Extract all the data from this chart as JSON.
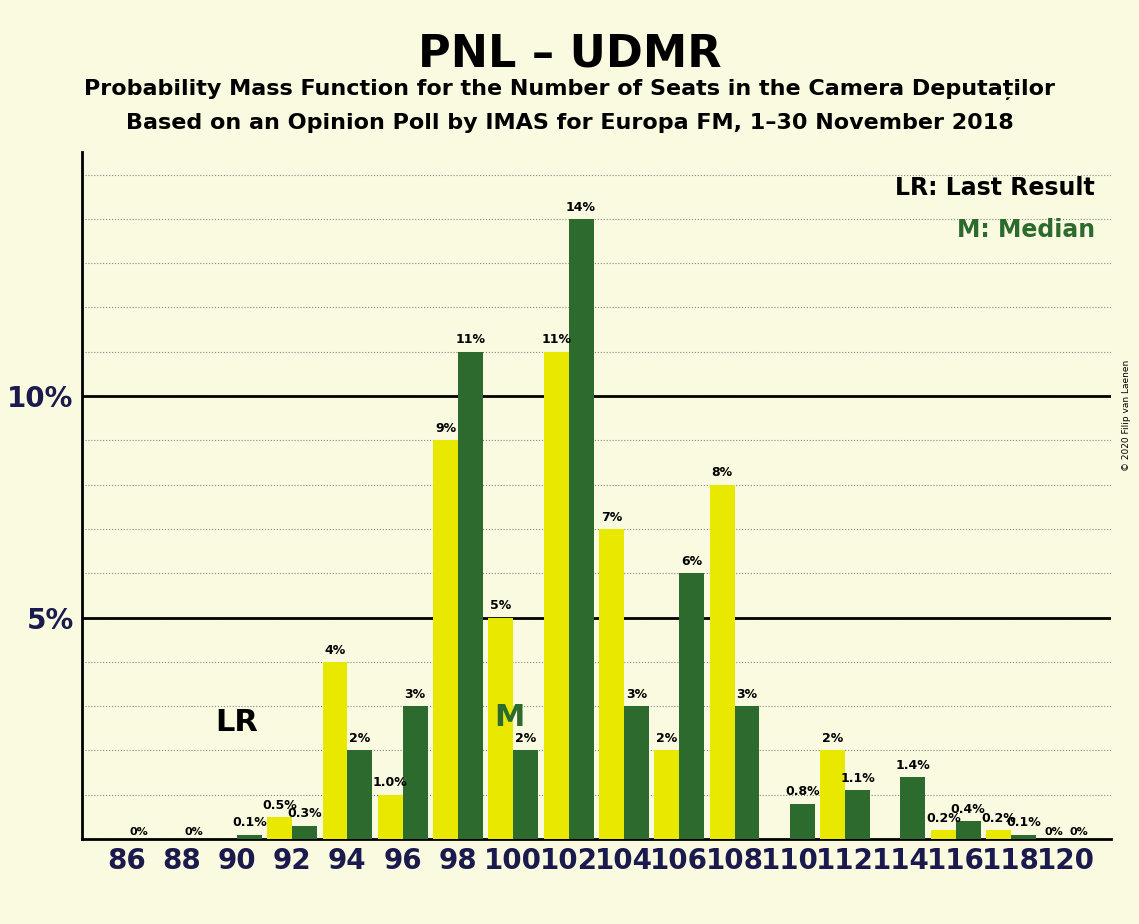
{
  "title": "PNL – UDMR",
  "subtitle1": "Probability Mass Function for the Number of Seats in the Camera Deputaților",
  "subtitle2": "Based on an Opinion Poll by IMAS for Europa FM, 1–30 November 2018",
  "copyright": "© 2020 Filip van Laenen",
  "legend_lr": "LR: Last Result",
  "legend_m": "M: Median",
  "background_color": "#FAFAE0",
  "seats": [
    86,
    88,
    90,
    92,
    94,
    96,
    98,
    100,
    102,
    104,
    106,
    108,
    110,
    112,
    114,
    116,
    118,
    120
  ],
  "green_values": [
    0.0,
    0.0,
    0.1,
    0.3,
    2.0,
    3.0,
    11.0,
    2.0,
    14.0,
    3.0,
    6.0,
    3.0,
    0.8,
    1.1,
    1.4,
    0.4,
    0.1,
    0.0
  ],
  "yellow_values": [
    0.0,
    0.0,
    0.0,
    0.5,
    4.0,
    1.0,
    9.0,
    5.0,
    11.0,
    7.0,
    2.0,
    8.0,
    0.0,
    2.0,
    0.0,
    0.2,
    0.2,
    0.0
  ],
  "green_labels": [
    "0%",
    "0%",
    "0.1%",
    "0.3%",
    "2%",
    "3%",
    "11%",
    "2%",
    "14%",
    "3%",
    "6%",
    "3%",
    "0.8%",
    "1.1%",
    "1.4%",
    "0.4%",
    "0.1%",
    "0%"
  ],
  "yellow_labels": [
    "",
    "",
    "",
    "0.5%",
    "4%",
    "1.0%",
    "9%",
    "5%",
    "11%",
    "7%",
    "2%",
    "8%",
    "",
    "2%",
    "",
    "0.2%",
    "0.2%",
    "0%"
  ],
  "green_color": "#2d6a2d",
  "yellow_color": "#e8e800",
  "bar_width": 0.45,
  "ylim": [
    0,
    15.5
  ],
  "lr_seat_idx": 3,
  "median_seat_idx": 7,
  "lr_label": "LR",
  "median_label": "M",
  "title_fontsize": 32,
  "subtitle_fontsize": 16,
  "label_fontsize": 9,
  "axis_tick_fontsize": 20
}
